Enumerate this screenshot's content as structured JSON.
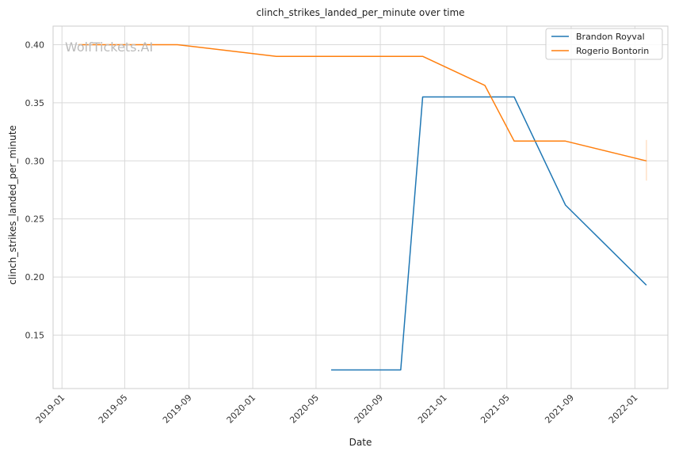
{
  "chart_data": {
    "type": "line",
    "title": "clinch_strikes_landed_per_minute over time",
    "xlabel": "Date",
    "ylabel": "clinch_strikes_landed_per_minute",
    "watermark": "WolfTickets.AI",
    "xlim": [
      "2018-12-15",
      "2022-03-05"
    ],
    "ylim": [
      0.104,
      0.416
    ],
    "x_ticks": [
      "2019-01",
      "2019-05",
      "2019-09",
      "2020-01",
      "2020-05",
      "2020-09",
      "2021-01",
      "2021-05",
      "2021-09",
      "2022-01"
    ],
    "y_ticks": [
      0.15,
      0.2,
      0.25,
      0.3,
      0.35,
      0.4
    ],
    "y_tick_labels": [
      "0.15",
      "0.20",
      "0.25",
      "0.30",
      "0.35",
      "0.40"
    ],
    "grid": true,
    "legend_position": "top-right",
    "series": [
      {
        "name": "Brandon Royval",
        "color": "#1f77b4",
        "x": [
          "2020-05-30",
          "2020-10-10",
          "2020-11-21",
          "2021-05-15",
          "2021-08-21",
          "2022-01-23"
        ],
        "y": [
          0.12,
          0.12,
          0.355,
          0.355,
          0.262,
          0.193
        ]
      },
      {
        "name": "Rogerio Bontorin",
        "color": "#ff7f0e",
        "x": [
          "2019-02-02",
          "2019-08-10",
          "2020-02-15",
          "2020-11-21",
          "2021-03-20",
          "2021-05-15",
          "2021-08-21",
          "2022-01-23"
        ],
        "y": [
          0.4,
          0.4,
          0.39,
          0.39,
          0.365,
          0.317,
          0.317,
          0.3
        ]
      }
    ],
    "error_bar": {
      "series": "Rogerio Bontorin",
      "x": "2022-01-23",
      "low": 0.283,
      "high": 0.318
    }
  }
}
